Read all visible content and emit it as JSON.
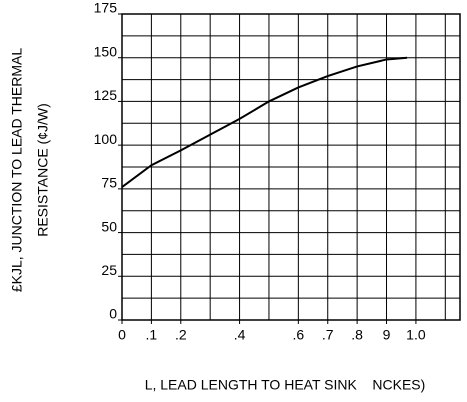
{
  "chart_data": {
    "type": "line",
    "y_title": [
      "£KJL, JUNCTION TO LEAD THERMAL",
      "RESISTANCE (¢J/W)"
    ],
    "x_title": "L, LEAD LENGTH TO HEAT SINK    NCKES)",
    "x": [
      0,
      0.1,
      0.2,
      0.3,
      0.4,
      0.5,
      0.6,
      0.7,
      0.8,
      0.9,
      0.97
    ],
    "series": [
      {
        "color": "#000000",
        "values": [
          76,
          88.5,
          97,
          106,
          115,
          125,
          133,
          139.5,
          145,
          149,
          150
        ]
      }
    ],
    "xlim": [
      0,
      1.15
    ],
    "ylim": [
      0,
      175
    ],
    "xticks": [
      0,
      {
        "value": 0.1,
        "label": ".1"
      },
      {
        "value": 0.2,
        "label": ".2"
      },
      {
        "value": 0.4,
        "label": ".4"
      },
      {
        "value": 0.6,
        "label": ".6"
      },
      {
        "value": 0.7,
        "label": ".7"
      },
      {
        "value": 0.8,
        "label": ".8"
      },
      {
        "value": 0.9,
        "label": "9"
      },
      {
        "value": 1,
        "label": "1.0"
      }
    ],
    "yticks": [
      0,
      25,
      50,
      75,
      100,
      125,
      150,
      175
    ],
    "grid_step": {
      "x": 0.1,
      "y": 12.5
    }
  }
}
